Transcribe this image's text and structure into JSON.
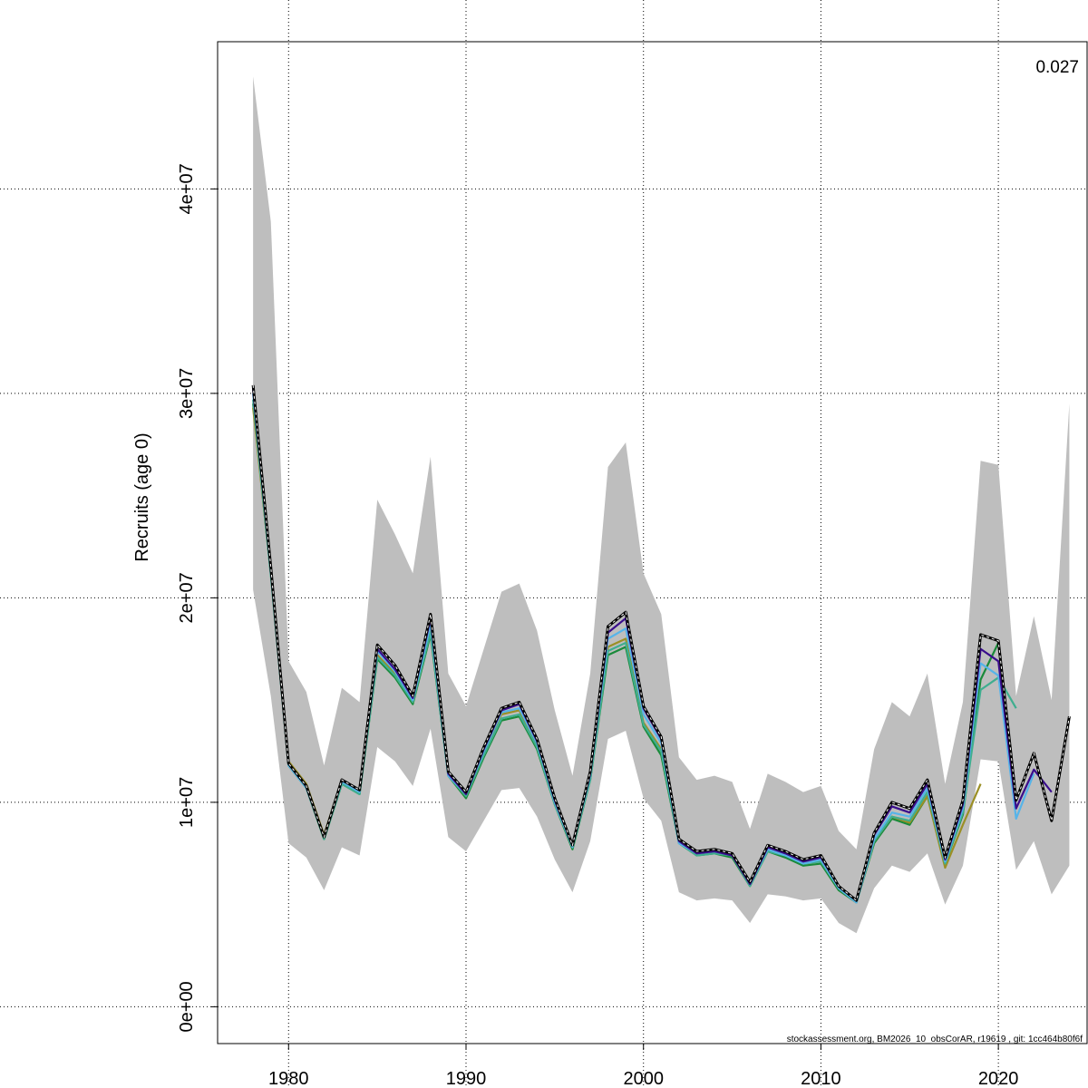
{
  "chart_data": {
    "type": "line",
    "title": "",
    "xlabel": "",
    "ylabel": "Recruits (age 0)",
    "xlim": [
      1976,
      2025
    ],
    "ylim": [
      -1800000,
      47200000
    ],
    "x_ticks": [
      1980,
      1990,
      2000,
      2010,
      2020
    ],
    "x_tick_labels": [
      "1980",
      "1990",
      "2000",
      "2010",
      "2020"
    ],
    "y_ticks": [
      0,
      10000000,
      20000000,
      30000000,
      40000000
    ],
    "y_tick_labels": [
      "0e+00",
      "1e+07",
      "2e+07",
      "3e+07",
      "4e+07"
    ],
    "grid": true,
    "annotation": "0.027",
    "footer": "stockassessment.org, BM2026_10_obsCorAR, r19619 , git: 1cc464b80f6f",
    "colors": {
      "band": "#bebebe",
      "main": "#000000",
      "peel1": "#3a0d8c",
      "peel2": "#56b4e9",
      "peel3": "#3fae8f",
      "peel4": "#9b8f25",
      "peel5": "#1a8a3a"
    },
    "band": {
      "x": [
        1978,
        1979,
        1980,
        1981,
        1982,
        1983,
        1984,
        1985,
        1986,
        1987,
        1988,
        1989,
        1990,
        1991,
        1992,
        1993,
        1994,
        1995,
        1996,
        1997,
        1998,
        1999,
        2000,
        2001,
        2002,
        2003,
        2004,
        2005,
        2006,
        2007,
        2008,
        2009,
        2010,
        2011,
        2012,
        2013,
        2014,
        2015,
        2016,
        2017,
        2018,
        2019,
        2020,
        2021,
        2022,
        2023,
        2024
      ],
      "lower": [
        20400000,
        15200000,
        8000000,
        7300000,
        5700000,
        7800000,
        7400000,
        12700000,
        12000000,
        10800000,
        13600000,
        8300000,
        7600000,
        9100000,
        10600000,
        10700000,
        9300000,
        7200000,
        5600000,
        8100000,
        13100000,
        13500000,
        10200000,
        9100000,
        5600000,
        5200000,
        5300000,
        5200000,
        4100000,
        5500000,
        5400000,
        5200000,
        5300000,
        4100000,
        3600000,
        5800000,
        6900000,
        6600000,
        7500000,
        5000000,
        6900000,
        12100000,
        12000000,
        6700000,
        8100000,
        5500000,
        6900000
      ],
      "upper": [
        45500000,
        38400000,
        16900000,
        15400000,
        11800000,
        15600000,
        14900000,
        24800000,
        23100000,
        21200000,
        26900000,
        16300000,
        14700000,
        17500000,
        20300000,
        20700000,
        18400000,
        14500000,
        11300000,
        16300000,
        26400000,
        27600000,
        21200000,
        19200000,
        12200000,
        11100000,
        11300000,
        11000000,
        8700000,
        11400000,
        11000000,
        10500000,
        10800000,
        8600000,
        7700000,
        12600000,
        14900000,
        14200000,
        16300000,
        10900000,
        14900000,
        26700000,
        26500000,
        15200000,
        19100000,
        15000000,
        29500000
      ]
    },
    "series": [
      {
        "key": "main",
        "x": [
          1978,
          1979,
          1980,
          1981,
          1982,
          1983,
          1984,
          1985,
          1986,
          1987,
          1988,
          1989,
          1990,
          1991,
          1992,
          1993,
          1994,
          1995,
          1996,
          1997,
          1998,
          1999,
          2000,
          2001,
          2002,
          2003,
          2004,
          2005,
          2006,
          2007,
          2008,
          2009,
          2010,
          2011,
          2012,
          2013,
          2014,
          2015,
          2016,
          2017,
          2018,
          2019,
          2020,
          2021,
          2022,
          2023,
          2024
        ],
        "values": [
          30400000,
          21500000,
          11900000,
          10800000,
          8300000,
          11100000,
          10600000,
          17700000,
          16700000,
          15200000,
          19200000,
          11500000,
          10500000,
          12700000,
          14600000,
          14900000,
          13100000,
          10200000,
          7900000,
          11500000,
          18600000,
          19300000,
          14700000,
          13200000,
          8200000,
          7600000,
          7700000,
          7500000,
          6100000,
          7900000,
          7600000,
          7200000,
          7400000,
          5900000,
          5200000,
          8500000,
          10000000,
          9700000,
          11100000,
          7300000,
          10100000,
          18200000,
          17900000,
          10100000,
          12400000,
          9100000,
          14200000
        ]
      },
      {
        "key": "peel1",
        "x": [
          1978,
          1979,
          1980,
          1981,
          1982,
          1983,
          1984,
          1985,
          1986,
          1987,
          1988,
          1989,
          1990,
          1991,
          1992,
          1993,
          1994,
          1995,
          1996,
          1997,
          1998,
          1999,
          2000,
          2001,
          2002,
          2003,
          2004,
          2005,
          2006,
          2007,
          2008,
          2009,
          2010,
          2011,
          2012,
          2013,
          2014,
          2015,
          2016,
          2017,
          2018,
          2019,
          2020,
          2021,
          2022,
          2023
        ],
        "values": [
          30200000,
          21400000,
          11900000,
          10800000,
          8300000,
          11100000,
          10600000,
          17500000,
          16500000,
          15100000,
          19000000,
          11400000,
          10400000,
          12600000,
          14500000,
          14800000,
          13000000,
          10100000,
          7900000,
          11400000,
          18300000,
          19000000,
          14600000,
          13100000,
          8100000,
          7500000,
          7600000,
          7400000,
          6000000,
          7800000,
          7500000,
          7100000,
          7300000,
          5900000,
          5200000,
          8400000,
          9800000,
          9500000,
          10900000,
          7200000,
          9900000,
          17500000,
          16900000,
          9700000,
          11600000,
          10500000
        ]
      },
      {
        "key": "peel2",
        "x": [
          1978,
          1979,
          1980,
          1981,
          1982,
          1983,
          1984,
          1985,
          1986,
          1987,
          1988,
          1989,
          1990,
          1991,
          1992,
          1993,
          1994,
          1995,
          1996,
          1997,
          1998,
          1999,
          2000,
          2001,
          2002,
          2003,
          2004,
          2005,
          2006,
          2007,
          2008,
          2009,
          2010,
          2011,
          2012,
          2013,
          2014,
          2015,
          2016,
          2017,
          2018,
          2019,
          2020,
          2021,
          2022
        ],
        "values": [
          30000000,
          21300000,
          11800000,
          10700000,
          8300000,
          11000000,
          10500000,
          17400000,
          16400000,
          15000000,
          18700000,
          11300000,
          10400000,
          12500000,
          14400000,
          14600000,
          12900000,
          10000000,
          7800000,
          11300000,
          18000000,
          18500000,
          14300000,
          12900000,
          8000000,
          7500000,
          7600000,
          7400000,
          6000000,
          7700000,
          7400000,
          7000000,
          7200000,
          5800000,
          5100000,
          8200000,
          9500000,
          9300000,
          10700000,
          7100000,
          9700000,
          16800000,
          16200000,
          9200000,
          11400000
        ]
      },
      {
        "key": "peel3",
        "x": [
          1978,
          1979,
          1980,
          1981,
          1982,
          1983,
          1984,
          1985,
          1986,
          1987,
          1988,
          1989,
          1990,
          1991,
          1992,
          1993,
          1994,
          1995,
          1996,
          1997,
          1998,
          1999,
          2000,
          2001,
          2002,
          2003,
          2004,
          2005,
          2006,
          2007,
          2008,
          2009,
          2010,
          2011,
          2012,
          2013,
          2014,
          2015,
          2016,
          2017,
          2018,
          2019,
          2020,
          2021
        ],
        "values": [
          29700000,
          21100000,
          11800000,
          10700000,
          8200000,
          10900000,
          10400000,
          17100000,
          16200000,
          14900000,
          18300000,
          11300000,
          10300000,
          12300000,
          14100000,
          14300000,
          12700000,
          9900000,
          7800000,
          11100000,
          17400000,
          17800000,
          13800000,
          12500000,
          8000000,
          7400000,
          7500000,
          7400000,
          5900000,
          7600000,
          7400000,
          7000000,
          7100000,
          5800000,
          5100000,
          8100000,
          9300000,
          9100000,
          10500000,
          7000000,
          9500000,
          15500000,
          16100000,
          14600000
        ]
      },
      {
        "key": "peel4",
        "x": [
          1978,
          1979,
          1980,
          1981,
          1982,
          1983,
          1984,
          1985,
          1986,
          1987,
          1988,
          1989,
          1990,
          1991,
          1992,
          1993,
          1994,
          1995,
          1996,
          1997,
          1998,
          1999,
          2000,
          2001,
          2002,
          2003,
          2004,
          2005,
          2006,
          2007,
          2008,
          2009,
          2010,
          2011,
          2012,
          2013,
          2014,
          2015,
          2016,
          2017,
          2018,
          2019
        ],
        "values": [
          29300000,
          21200000,
          12000000,
          10900000,
          8400000,
          11100000,
          10600000,
          17200000,
          16300000,
          14900000,
          18400000,
          11500000,
          10400000,
          12500000,
          14300000,
          14500000,
          12800000,
          10100000,
          7900000,
          11300000,
          17600000,
          18000000,
          13900000,
          12600000,
          8100000,
          7600000,
          7600000,
          7500000,
          6000000,
          7700000,
          7500000,
          7100000,
          7200000,
          5900000,
          5100000,
          8100000,
          9300000,
          9000000,
          10300000,
          6800000,
          8900000,
          10900000
        ]
      },
      {
        "key": "peel5",
        "x": [
          1978,
          1979,
          1980,
          1981,
          1982,
          1983,
          1984,
          1985,
          1986,
          1987,
          1988,
          1989,
          1990,
          1991,
          1992,
          1993,
          1994,
          1995,
          1996,
          1997,
          1998,
          1999,
          2000,
          2001,
          2002,
          2003,
          2004,
          2005,
          2006,
          2007,
          2008,
          2009,
          2010,
          2011,
          2012,
          2013,
          2014,
          2015,
          2016,
          2017,
          2018,
          2019,
          2020
        ],
        "values": [
          29500000,
          21200000,
          11800000,
          10700000,
          8200000,
          10900000,
          10400000,
          17000000,
          16100000,
          14800000,
          18200000,
          11300000,
          10200000,
          12200000,
          14000000,
          14200000,
          12600000,
          9900000,
          7700000,
          11100000,
          17200000,
          17600000,
          13700000,
          12300000,
          8000000,
          7400000,
          7500000,
          7300000,
          5900000,
          7600000,
          7300000,
          6900000,
          7000000,
          5700000,
          5100000,
          8000000,
          9200000,
          8900000,
          10300000,
          7000000,
          9400000,
          16000000,
          17800000
        ]
      }
    ]
  }
}
